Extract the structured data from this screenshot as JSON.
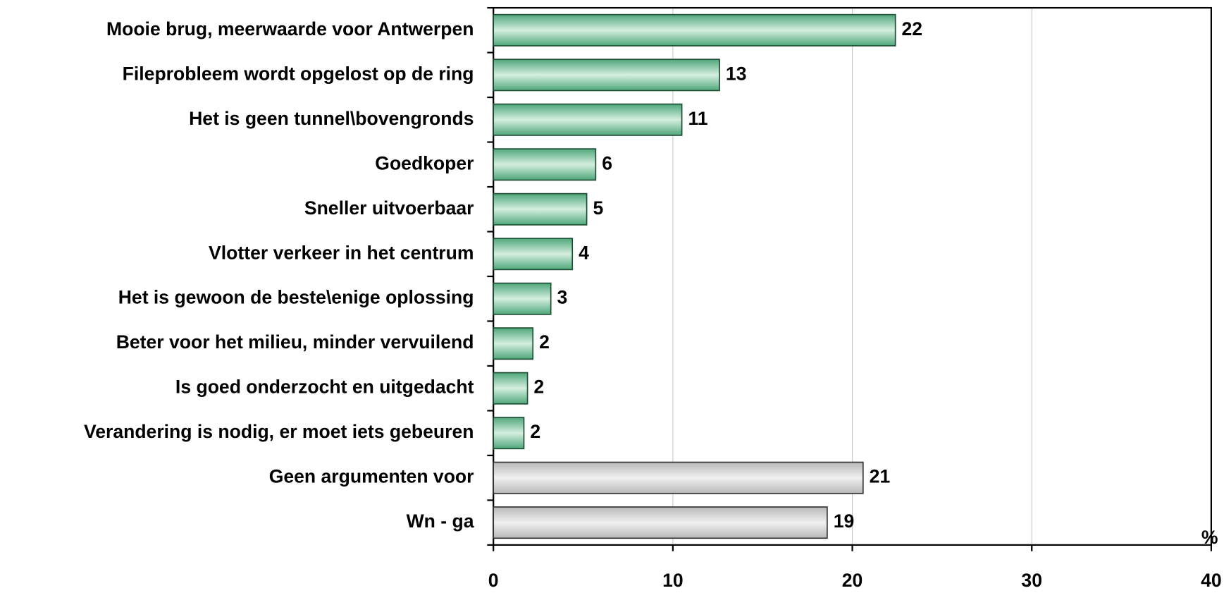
{
  "chart_data": {
    "type": "hbar",
    "categories": [
      "Mooie brug, meerwaarde voor Antwerpen",
      "Fileprobleem wordt opgelost op de ring",
      "Het is geen tunnel\\bovengronds",
      "Goedkoper",
      "Sneller uitvoerbaar",
      "Vlotter verkeer in het centrum",
      "Het is gewoon de beste\\enige oplossing",
      "Beter voor het milieu, minder vervuilend",
      "Is goed onderzocht en uitgedacht",
      "Verandering is nodig, er moet iets gebeuren",
      "Geen argumenten voor",
      "Wn - ga"
    ],
    "values": [
      22.4,
      12.6,
      10.5,
      5.7,
      5.2,
      4.4,
      3.2,
      2.2,
      1.9,
      1.7,
      20.6,
      18.6
    ],
    "value_labels": [
      "22",
      "13",
      "11",
      "6",
      "5",
      "4",
      "3",
      "2",
      "2",
      "2",
      "21",
      "19"
    ],
    "colors": [
      "green",
      "green",
      "green",
      "green",
      "green",
      "green",
      "green",
      "green",
      "green",
      "green",
      "grey",
      "grey"
    ],
    "x_label": "%",
    "xlim": [
      0,
      40
    ],
    "xticks": [
      0,
      10,
      20,
      30,
      40
    ],
    "grid": true
  }
}
